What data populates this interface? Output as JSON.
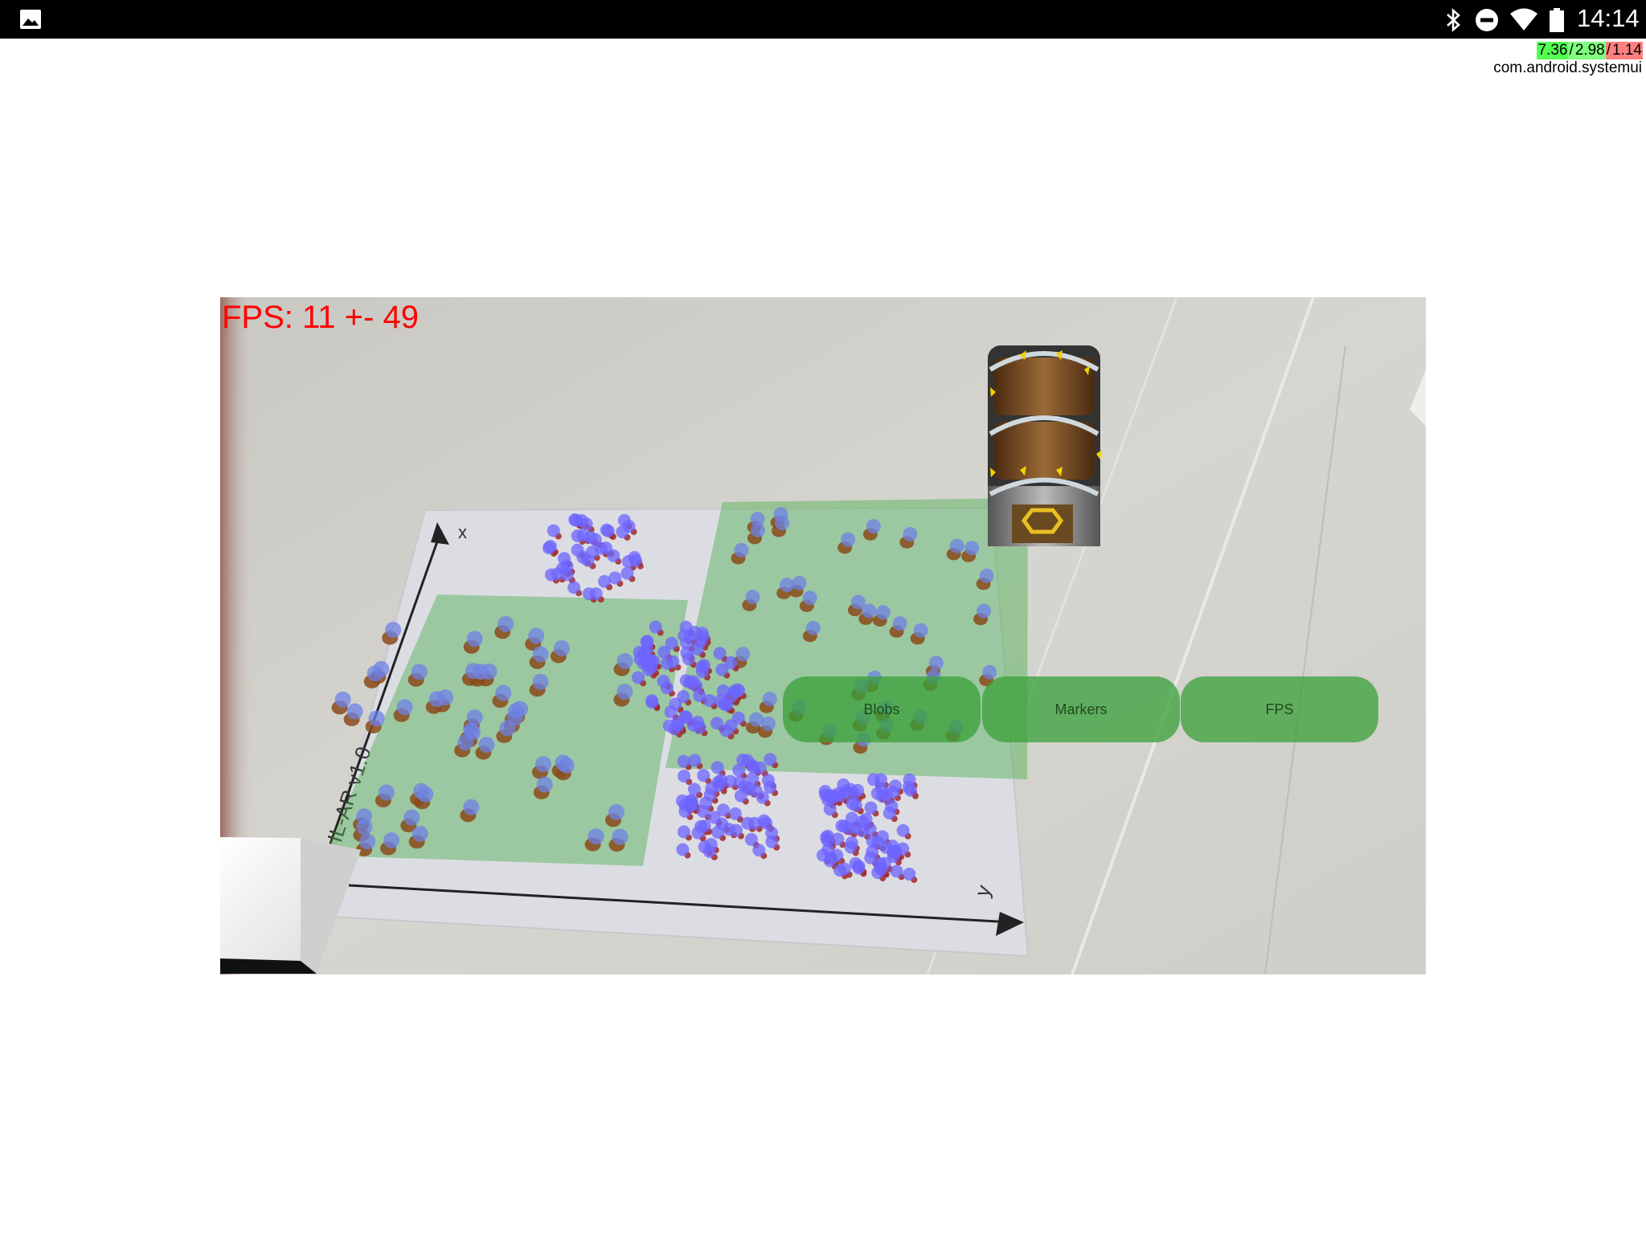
{
  "status_bar": {
    "time": "14:14",
    "icons": [
      "gallery-notification-icon",
      "bluetooth-icon",
      "do-not-disturb-icon",
      "wifi-icon",
      "battery-icon"
    ]
  },
  "load_average": {
    "one": "7.36",
    "five": "2.98",
    "fifteen": "1.14",
    "separator": " / ",
    "process": "com.android.systemui"
  },
  "ar_view": {
    "fps_text": "FPS: 11 +- 49",
    "sheet_label": "IL-AR v1.0",
    "axis_x_label": "x",
    "axis_y_label": "y"
  },
  "buttons": {
    "blobs": "Blobs",
    "markers": "Markers",
    "fps": "FPS"
  },
  "colors": {
    "fps_text": "#ff0000",
    "button_fill": "#38a038",
    "overlay_green": "#4caf50",
    "blob_blue": "#6a6aff",
    "marker_brown": "#8b4a1a"
  }
}
